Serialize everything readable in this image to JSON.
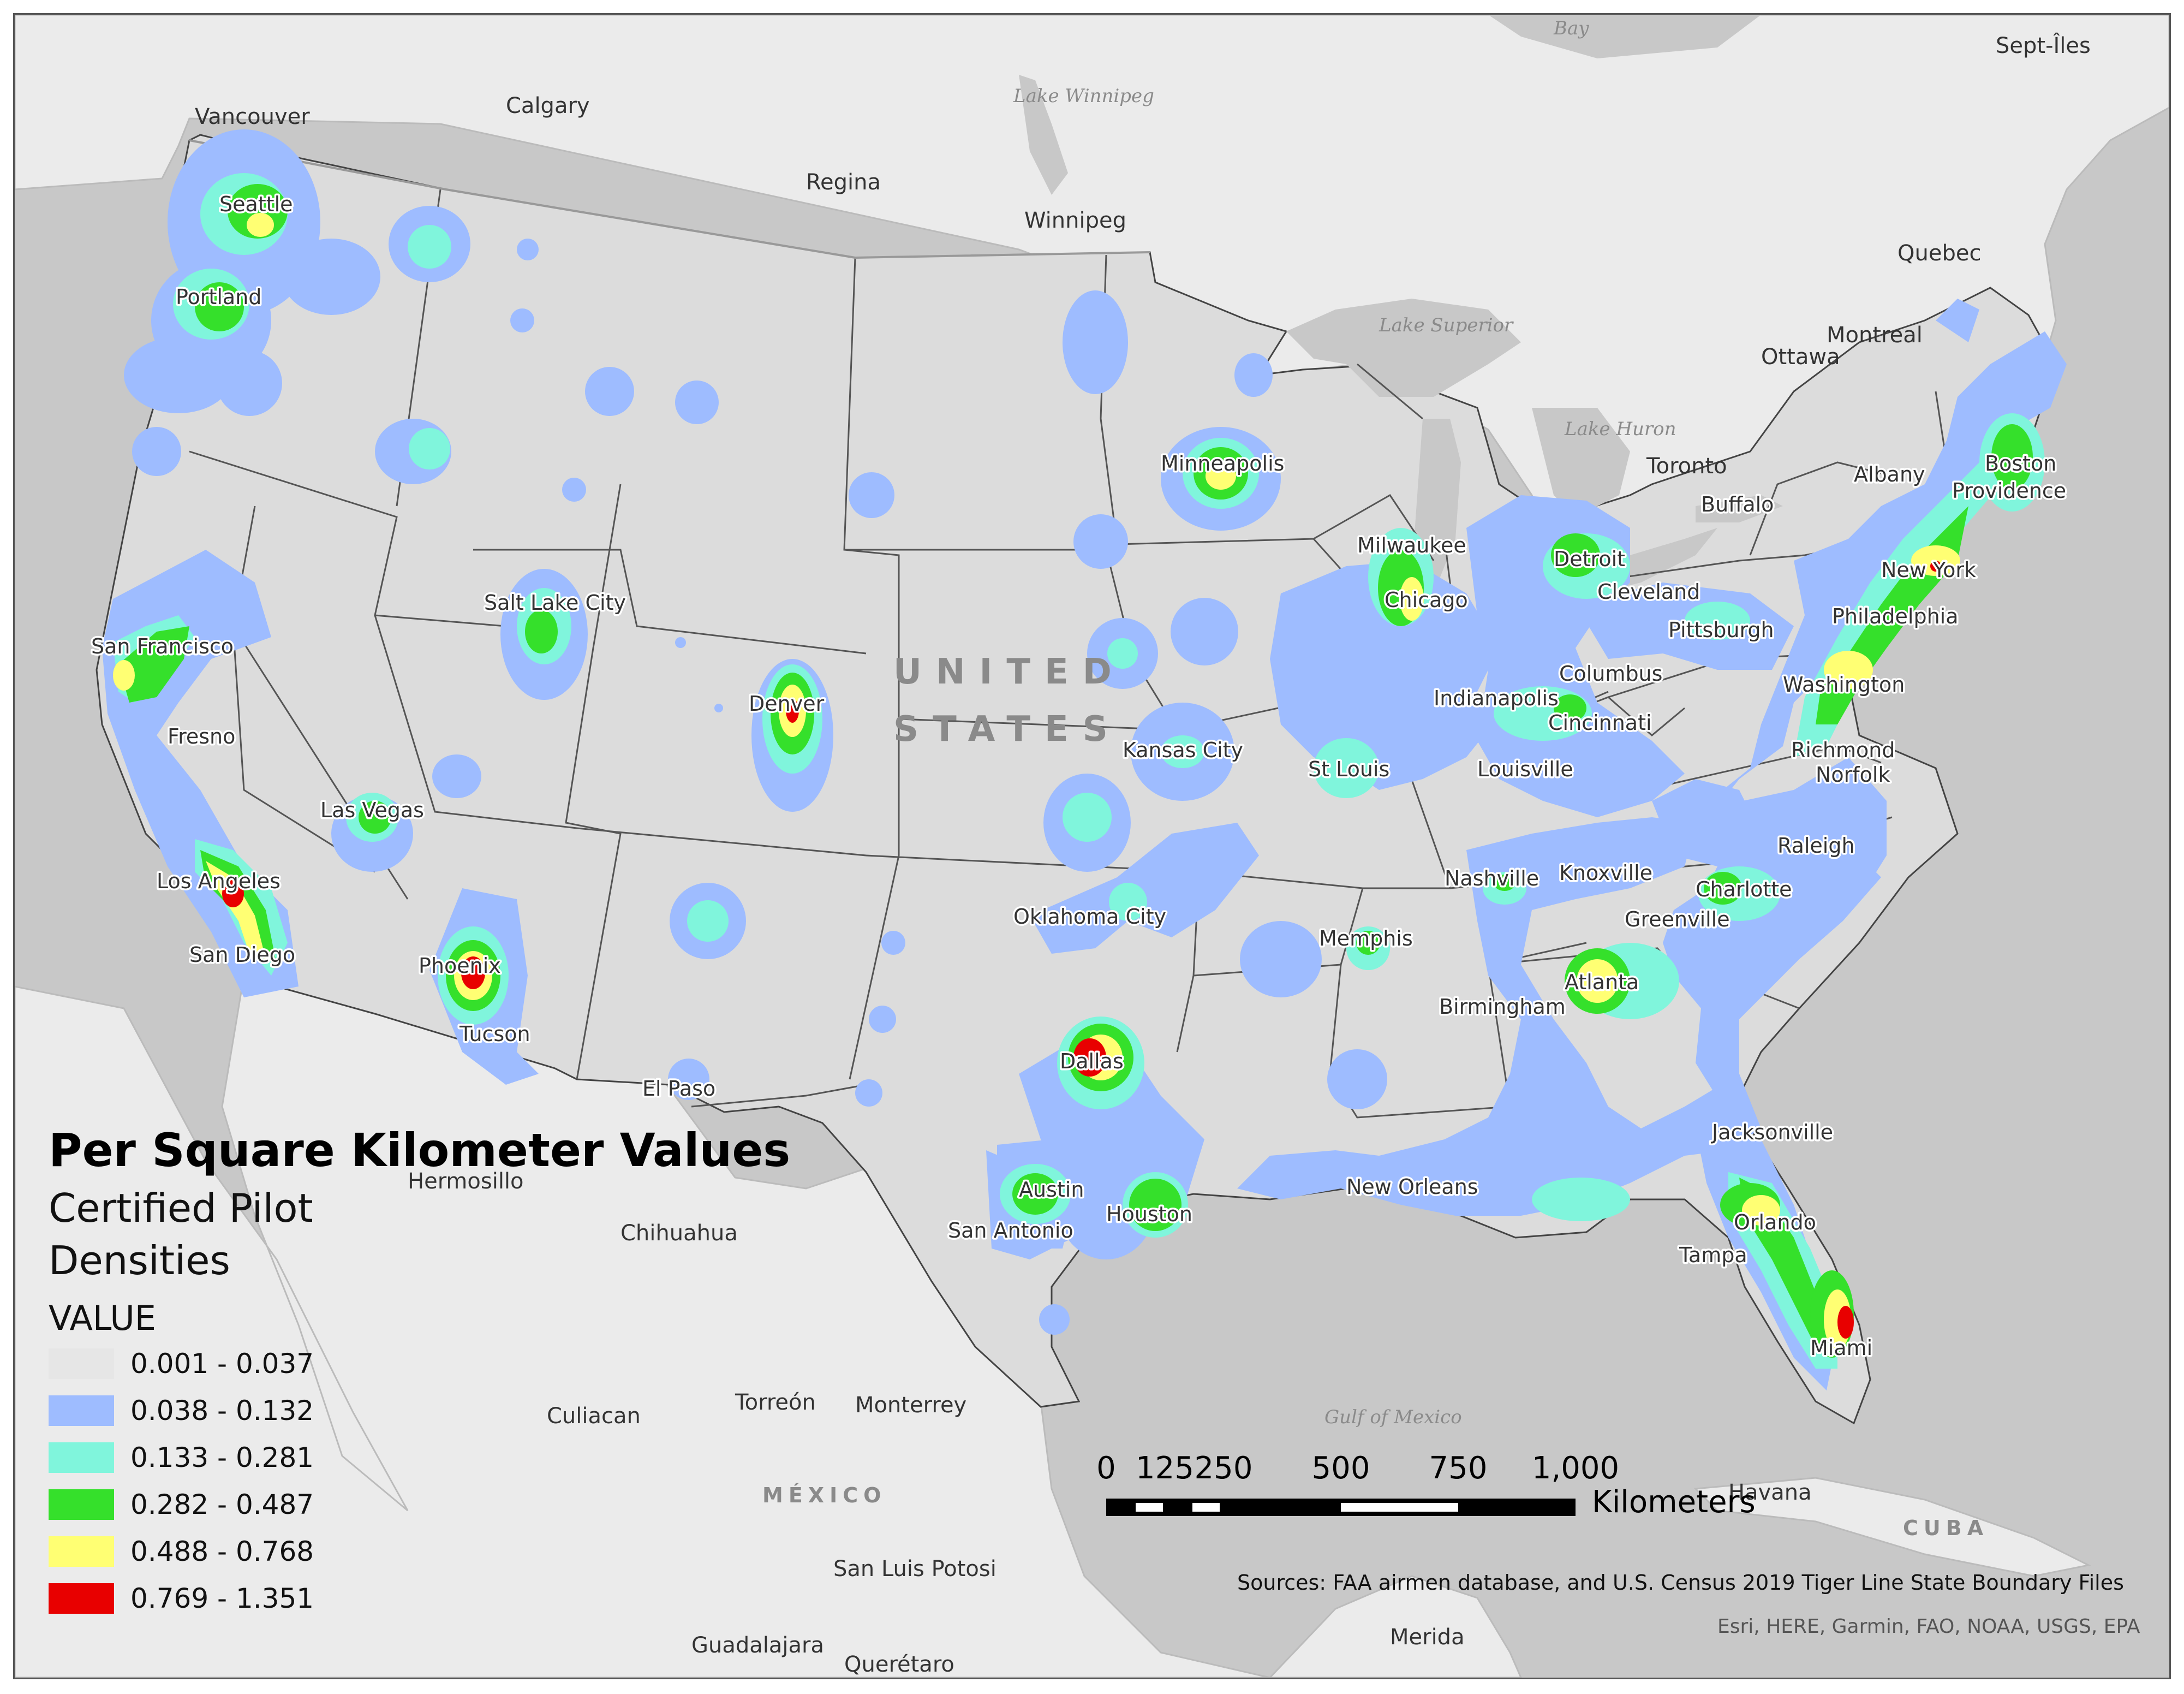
{
  "legend": {
    "title": "Per Square Kilometer Values",
    "subtitle": "Certified Pilot Densities",
    "field": "VALUE",
    "classes": [
      {
        "label": "0.001 - 0.037",
        "color": "#e6e6e6"
      },
      {
        "label": "0.038 - 0.132",
        "color": "#9ebcff"
      },
      {
        "label": "0.133 - 0.281",
        "color": "#80f5dc"
      },
      {
        "label": "0.282 - 0.487",
        "color": "#35e02b"
      },
      {
        "label": "0.488 - 0.768",
        "color": "#ffff73"
      },
      {
        "label": "0.769 - 1.351",
        "color": "#e80000"
      }
    ]
  },
  "scale_bar": {
    "ticks": [
      "0",
      "125",
      "250",
      "500",
      "750",
      "1,000"
    ],
    "units": "Kilometers"
  },
  "sources": "Sources: FAA airmen database,  and U.S. Census 2019 Tiger Line State Boundary Files",
  "attribution": "Esri, HERE, Garmin, FAO, NOAA, USGS, EPA",
  "country_labels": {
    "usa_1": "UNITED",
    "usa_2": "STATES",
    "mexico": "MÉXICO",
    "cuba": "CUBA"
  },
  "water_labels": {
    "hudson_bay": "Bay",
    "lake_winnipeg": "Lake Winnipeg",
    "lake_superior": "Lake Superior",
    "lake_huron": "Lake Huron",
    "gulf_of_mexico": "Gulf of Mexico"
  },
  "places": {
    "vancouver": "Vancouver",
    "calgary": "Calgary",
    "regina": "Regina",
    "winnipeg": "Winnipeg",
    "sept_iles": "Sept-Îles",
    "quebec": "Quebec",
    "montreal": "Montreal",
    "ottawa": "Ottawa",
    "toronto": "Toronto",
    "hermosillo": "Hermosillo",
    "chihuahua": "Chihuahua",
    "culiacan": "Culiacan",
    "torreon": "Torreón",
    "monterrey": "Monterrey",
    "san_luis_potosi": "San Luis Potosi",
    "guadalajara": "Guadalajara",
    "queretaro": "Querétaro",
    "merida": "Merida",
    "havana": "Havana"
  },
  "cities": {
    "seattle": "Seattle",
    "portland": "Portland",
    "san_francisco": "San Francisco",
    "fresno": "Fresno",
    "los_angeles": "Los Angeles",
    "san_diego": "San Diego",
    "las_vegas": "Las Vegas",
    "salt_lake_city": "Salt Lake City",
    "phoenix": "Phoenix",
    "tucson": "Tucson",
    "el_paso": "El Paso",
    "denver": "Denver",
    "minneapolis": "Minneapolis",
    "kansas_city": "Kansas City",
    "oklahoma_city": "Oklahoma City",
    "dallas": "Dallas",
    "austin": "Austin",
    "san_antonio": "San Antonio",
    "houston": "Houston",
    "st_louis": "St Louis",
    "memphis": "Memphis",
    "new_orleans": "New Orleans",
    "milwaukee": "Milwaukee",
    "chicago": "Chicago",
    "indianapolis": "Indianapolis",
    "louisville": "Louisville",
    "nashville": "Nashville",
    "knoxville": "Knoxville",
    "birmingham": "Birmingham",
    "atlanta": "Atlanta",
    "detroit": "Detroit",
    "cleveland": "Cleveland",
    "columbus": "Columbus",
    "cincinnati": "Cincinnati",
    "pittsburgh": "Pittsburgh",
    "buffalo": "Buffalo",
    "albany": "Albany",
    "boston": "Boston",
    "providence": "Providence",
    "new_york": "New York",
    "philadelphia": "Philadelphia",
    "washington": "Washington",
    "richmond": "Richmond",
    "norfolk": "Norfolk",
    "raleigh": "Raleigh",
    "charlotte": "Charlotte",
    "greenville": "Greenville",
    "jacksonville": "Jacksonville",
    "orlando": "Orlando",
    "tampa": "Tampa",
    "miami": "Miami"
  }
}
